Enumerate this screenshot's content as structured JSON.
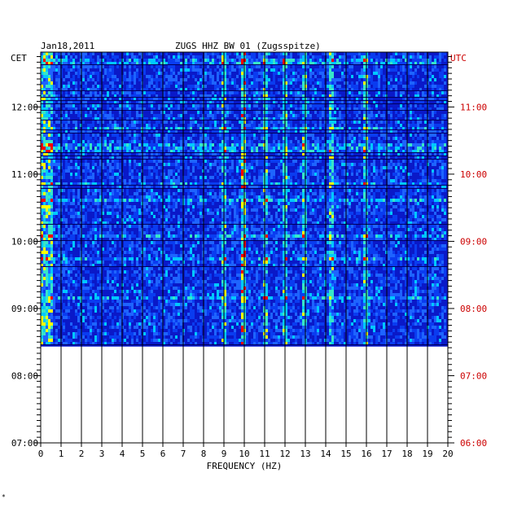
{
  "header": {
    "date": "Jan18,2011",
    "station": "ZUGS HHZ BW 01 (Zugsspitze)"
  },
  "chart_data": {
    "type": "heatmap",
    "title": "ZUGS HHZ BW 01 (Zugsspitze)",
    "date": "Jan18,2011",
    "xlabel": "FREQUENCY (HZ)",
    "xlim": [
      0,
      20
    ],
    "x_ticks": [
      0,
      1,
      2,
      3,
      4,
      5,
      6,
      7,
      8,
      9,
      10,
      11,
      12,
      13,
      14,
      15,
      16,
      17,
      18,
      19,
      20
    ],
    "left_axis_label": "CET",
    "right_axis_label": "UTC",
    "left_ticks": [
      "12:00",
      "11:00",
      "10:00",
      "09:00",
      "08:00",
      "07:00"
    ],
    "right_ticks": [
      "11:00",
      "10:00",
      "09:00",
      "08:00",
      "07:00",
      "06:00"
    ],
    "time_range_cet": [
      "07:00",
      "12:49"
    ],
    "data_start_cet": "08:26",
    "data_end_cet": "12:49",
    "dominant_frequencies_hz": [
      9.0,
      10.0,
      11.0,
      12.0,
      13.0,
      14.3,
      16.0
    ],
    "strongest_line_hz": 10.1,
    "colors": {
      "background": "#0a19c8",
      "low": "#000080",
      "mid": "#00c8ff",
      "high": "#ffff00",
      "peak": "#ff0000",
      "left_axis": "#000000",
      "right_axis": "#cc0000"
    }
  },
  "footer": {
    "mark": "*"
  }
}
